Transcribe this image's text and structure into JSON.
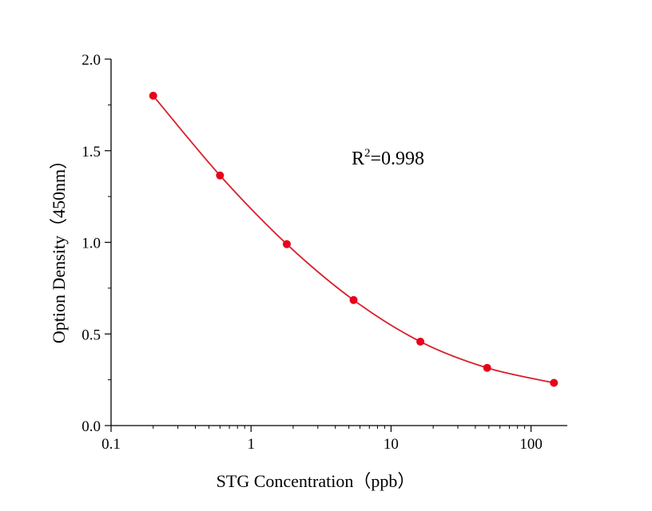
{
  "chart_data": {
    "type": "scatter",
    "xscale": "log",
    "xlim": [
      0.1,
      150
    ],
    "ylim": [
      0,
      2.0
    ],
    "xticks": [
      0.1,
      1,
      10,
      100
    ],
    "xtick_labels": [
      "0.1",
      "1",
      "10",
      "100"
    ],
    "yticks": [
      0,
      0.5,
      1.0,
      1.5,
      2.0
    ],
    "ytick_labels": [
      "0.0",
      "0.5",
      "1.0",
      "1.5",
      "2.0"
    ],
    "xlabel": "STG Concentration（ppb）",
    "ylabel": "Option Density（450nm）",
    "annotation": {
      "base": "R",
      "sup": "2",
      "rest": "=0.998"
    },
    "grid": false,
    "legend": "none",
    "series": [
      {
        "x": [
          0.2,
          0.6,
          1.8,
          5.4,
          16.2,
          48.6,
          145.8
        ],
        "y": [
          1.8,
          1.365,
          0.99,
          0.685,
          0.458,
          0.315,
          0.233
        ],
        "marker_color": "#e8001c",
        "line_color": "#d8202b",
        "fit_curve": true
      }
    ]
  }
}
